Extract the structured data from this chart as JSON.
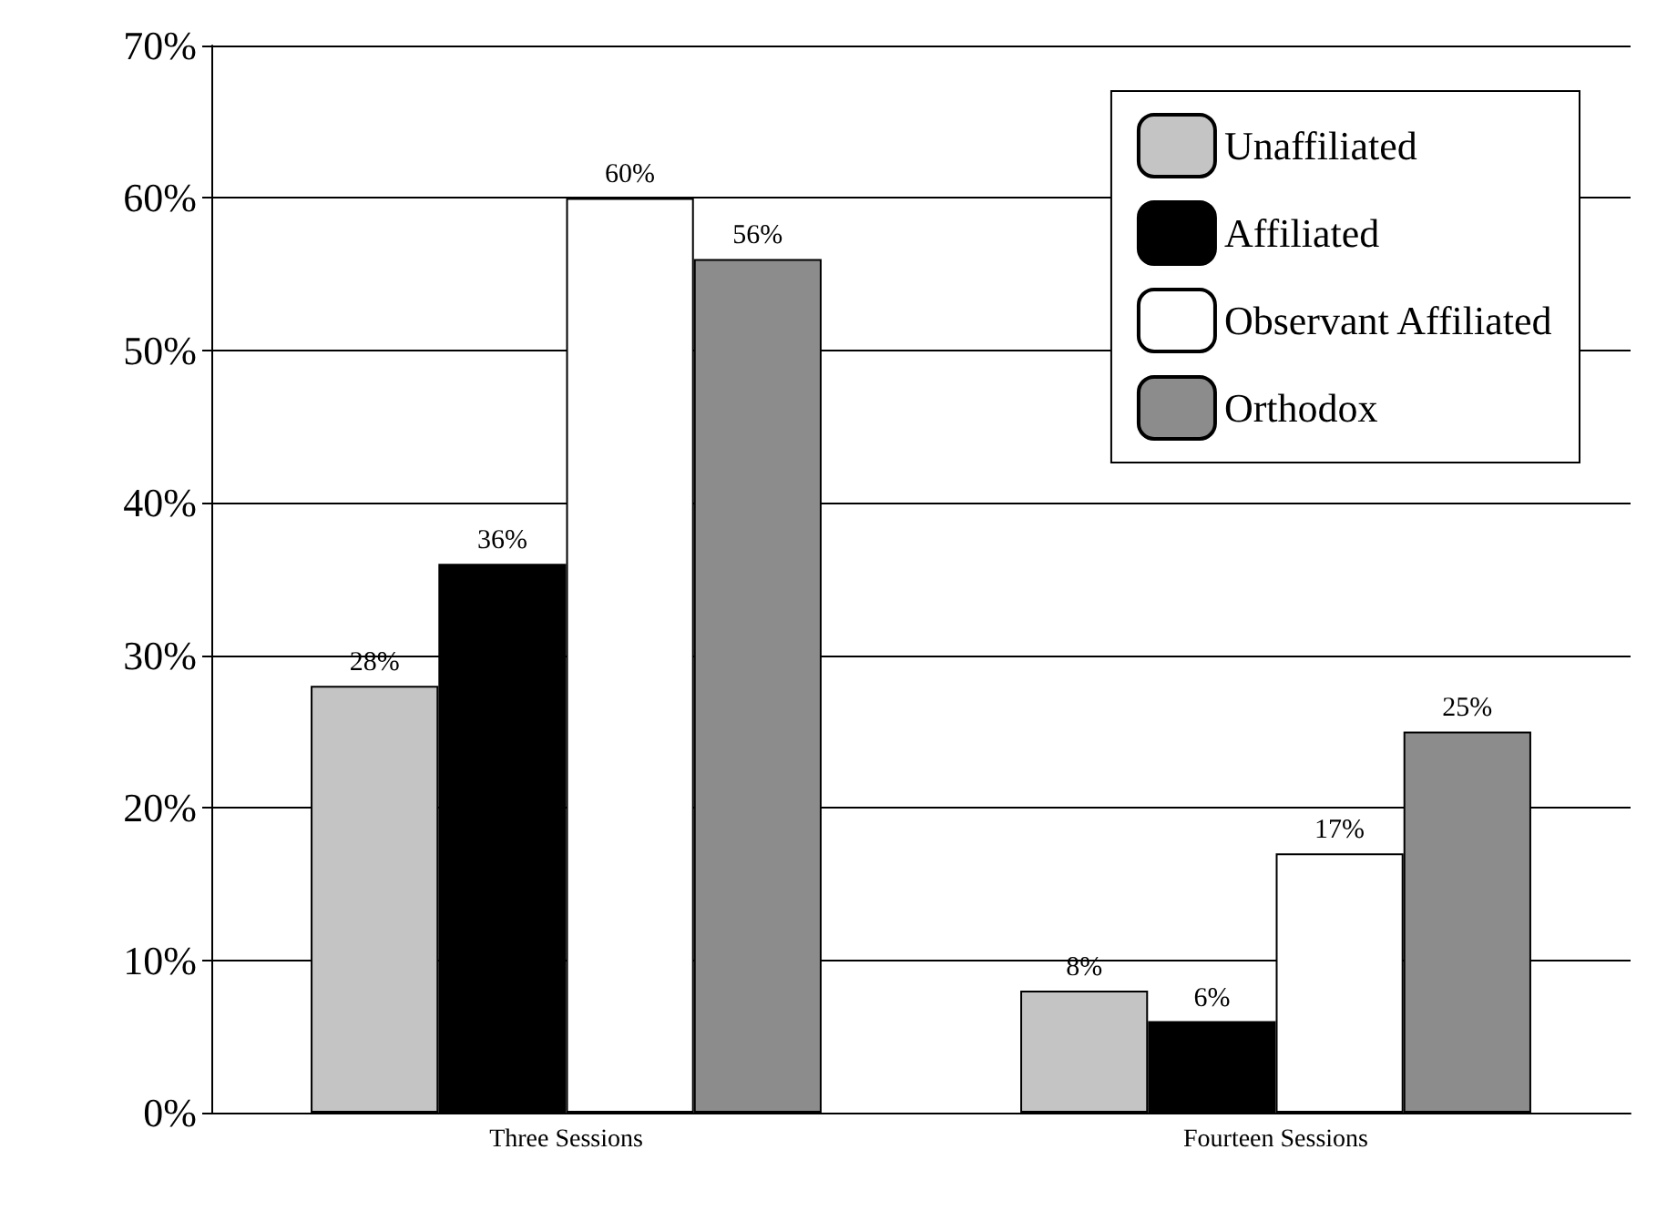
{
  "chart_data": {
    "type": "bar",
    "categories": [
      "Three Sessions",
      "Fourteen Sessions"
    ],
    "series": [
      {
        "name": "Unaffiliated",
        "color": "#c4c4c4",
        "values": [
          28,
          8
        ],
        "value_labels": [
          "28%",
          "8%"
        ]
      },
      {
        "name": "Affiliated",
        "color": "#000000",
        "values": [
          36,
          6
        ],
        "value_labels": [
          "36%",
          "6%"
        ]
      },
      {
        "name": "Observant Affiliated",
        "color": "#ffffff",
        "values": [
          60,
          17
        ],
        "value_labels": [
          "60%",
          "17%"
        ]
      },
      {
        "name": "Orthodox",
        "color": "#8c8c8c",
        "values": [
          56,
          25
        ],
        "value_labels": [
          "56%",
          "25%"
        ]
      }
    ],
    "ylim": [
      0,
      70
    ],
    "yticks": [
      {
        "value": 0,
        "label": "0%"
      },
      {
        "value": 10,
        "label": "10%"
      },
      {
        "value": 20,
        "label": "20%"
      },
      {
        "value": 30,
        "label": "30%"
      },
      {
        "value": 40,
        "label": "40%"
      },
      {
        "value": 50,
        "label": "50%"
      },
      {
        "value": 60,
        "label": "60%"
      },
      {
        "value": 70,
        "label": "70%"
      }
    ],
    "grid": "y",
    "legend": "top right"
  }
}
